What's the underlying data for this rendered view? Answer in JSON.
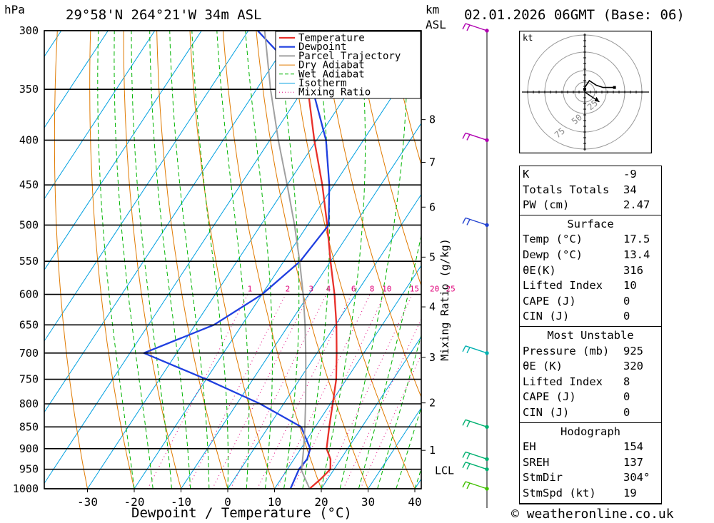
{
  "header": {
    "pressure_unit": "hPa",
    "location": "29°58'N  264°21'W  34m  ASL",
    "height_unit_line1": "km",
    "height_unit_line2": "ASL",
    "datetime": "02.01.2026  06GMT  (Base: 06)"
  },
  "footer": {
    "xaxis_label": "Dewpoint / Temperature (°C)",
    "watermark": "© weatheronline.co.uk"
  },
  "colors": {
    "temperature": "#e8302a",
    "dewpoint": "#1f3fe0",
    "parcel": "#a0a0a0",
    "dry_adiabat": "#e07a00",
    "wet_adiabat": "#00b400",
    "isotherm": "#00a0e0",
    "mixing_ratio": "#e0007a"
  },
  "chart_data": {
    "type": "line",
    "title": "",
    "xlabel": "Dewpoint / Temperature (°C)",
    "ylabel": "hPa",
    "y_scale": "log-pressure",
    "pressure_levels": [
      300,
      350,
      400,
      450,
      500,
      550,
      600,
      650,
      700,
      750,
      800,
      850,
      900,
      950,
      1000
    ],
    "temperature_ticks": [
      -30,
      -20,
      -10,
      0,
      10,
      20,
      30,
      40
    ],
    "xlim": [
      -40,
      40
    ],
    "ylim": [
      1000,
      300
    ],
    "height_km_labels": [
      {
        "km": "8",
        "p": 379
      },
      {
        "km": "7",
        "p": 424
      },
      {
        "km": "6",
        "p": 477
      },
      {
        "km": "5",
        "p": 544
      },
      {
        "km": "4",
        "p": 620
      },
      {
        "km": "3",
        "p": 708
      },
      {
        "km": "2",
        "p": 798
      },
      {
        "km": "1",
        "p": 904
      }
    ],
    "lcl": {
      "label": "LCL",
      "p": 953
    },
    "mixing_ratio_axis_label": "Mixing Ratio (g/kg)",
    "mixing_ratio_labels": [
      "1",
      "2",
      "3",
      "4",
      "6",
      "8",
      "10",
      "15",
      "20",
      "25"
    ],
    "legend": {
      "placement": "top-right",
      "entries": [
        "Temperature",
        "Dewpoint",
        "Parcel Trajectory",
        "Dry Adiabat",
        "Wet Adiabat",
        "Isotherm",
        "Mixing Ratio"
      ]
    },
    "series": [
      {
        "name": "Temperature",
        "points": [
          {
            "p": 1000,
            "t": 17.5
          },
          {
            "p": 975,
            "t": 18.5
          },
          {
            "p": 950,
            "t": 19.2
          },
          {
            "p": 925,
            "t": 17.8
          },
          {
            "p": 900,
            "t": 15.5
          },
          {
            "p": 850,
            "t": 13.0
          },
          {
            "p": 800,
            "t": 10.5
          },
          {
            "p": 750,
            "t": 7.8
          },
          {
            "p": 700,
            "t": 4.2
          },
          {
            "p": 650,
            "t": 0.2
          },
          {
            "p": 600,
            "t": -4.5
          },
          {
            "p": 550,
            "t": -10.0
          },
          {
            "p": 500,
            "t": -15.8
          },
          {
            "p": 450,
            "t": -22.5
          },
          {
            "p": 400,
            "t": -30.5
          },
          {
            "p": 350,
            "t": -39.0
          },
          {
            "p": 300,
            "t": -48.5
          }
        ]
      },
      {
        "name": "Dewpoint",
        "points": [
          {
            "p": 1000,
            "t": 13.4
          },
          {
            "p": 950,
            "t": 12.5
          },
          {
            "p": 925,
            "t": 12.8
          },
          {
            "p": 900,
            "t": 12.0
          },
          {
            "p": 850,
            "t": 7.0
          },
          {
            "p": 800,
            "t": -5.0
          },
          {
            "p": 750,
            "t": -20.0
          },
          {
            "p": 700,
            "t": -37.0
          },
          {
            "p": 650,
            "t": -26.0
          },
          {
            "p": 600,
            "t": -20.0
          },
          {
            "p": 550,
            "t": -16.5
          },
          {
            "p": 500,
            "t": -15.5
          },
          {
            "p": 450,
            "t": -21.0
          },
          {
            "p": 400,
            "t": -28.0
          },
          {
            "p": 350,
            "t": -38.0
          },
          {
            "p": 300,
            "t": -58.0
          }
        ]
      },
      {
        "name": "Parcel Trajectory",
        "points": [
          {
            "p": 1000,
            "t": 17.5
          },
          {
            "p": 953,
            "t": 13.2
          },
          {
            "p": 900,
            "t": 10.6
          },
          {
            "p": 850,
            "t": 7.8
          },
          {
            "p": 800,
            "t": 4.7
          },
          {
            "p": 750,
            "t": 1.3
          },
          {
            "p": 700,
            "t": -2.4
          },
          {
            "p": 650,
            "t": -6.5
          },
          {
            "p": 600,
            "t": -11.2
          },
          {
            "p": 550,
            "t": -16.6
          },
          {
            "p": 500,
            "t": -22.8
          },
          {
            "p": 450,
            "t": -30.0
          },
          {
            "p": 400,
            "t": -38.2
          },
          {
            "p": 350,
            "t": -47.0
          },
          {
            "p": 300,
            "t": -56.5
          }
        ]
      }
    ],
    "wind_barbs": [
      {
        "p": 300,
        "color": "#b000b0"
      },
      {
        "p": 400,
        "color": "#b000b0"
      },
      {
        "p": 500,
        "color": "#2040d0"
      },
      {
        "p": 700,
        "color": "#00b0b0"
      },
      {
        "p": 850,
        "color": "#00b070"
      },
      {
        "p": 925,
        "color": "#00b070"
      },
      {
        "p": 950,
        "color": "#00b070"
      },
      {
        "p": 1000,
        "color": "#40c000"
      }
    ],
    "hodograph": {
      "unit": "kt",
      "ring_labels": [
        "25",
        "50",
        "75"
      ],
      "trace": [
        [
          0,
          0
        ],
        [
          0,
          2
        ],
        [
          2,
          5
        ],
        [
          5,
          3
        ],
        [
          8,
          2
        ],
        [
          13,
          2
        ]
      ],
      "storm_motion": {
        "dir_deg": 304,
        "speed_kt": 19
      }
    }
  },
  "indices": {
    "top": [
      {
        "label": "K",
        "value": "-9"
      },
      {
        "label": "Totals Totals",
        "value": "34"
      },
      {
        "label": "PW (cm)",
        "value": "2.47"
      }
    ],
    "surface_title": "Surface",
    "surface": [
      {
        "label": "Temp (°C)",
        "value": "17.5"
      },
      {
        "label": "Dewp (°C)",
        "value": "13.4"
      },
      {
        "label": "θE(K)",
        "value": "316"
      },
      {
        "label": "Lifted Index",
        "value": "10"
      },
      {
        "label": "CAPE (J)",
        "value": "0"
      },
      {
        "label": "CIN (J)",
        "value": "0"
      }
    ],
    "most_unstable_title": "Most Unstable",
    "most_unstable": [
      {
        "label": "Pressure (mb)",
        "value": "925"
      },
      {
        "label": "θE (K)",
        "value": "320"
      },
      {
        "label": "Lifted Index",
        "value": "8"
      },
      {
        "label": "CAPE (J)",
        "value": "0"
      },
      {
        "label": "CIN (J)",
        "value": "0"
      }
    ],
    "hodograph_title": "Hodograph",
    "hodograph": [
      {
        "label": "EH",
        "value": "154"
      },
      {
        "label": "SREH",
        "value": "137"
      },
      {
        "label": "StmDir",
        "value": "304°"
      },
      {
        "label": "StmSpd (kt)",
        "value": "19"
      }
    ]
  }
}
